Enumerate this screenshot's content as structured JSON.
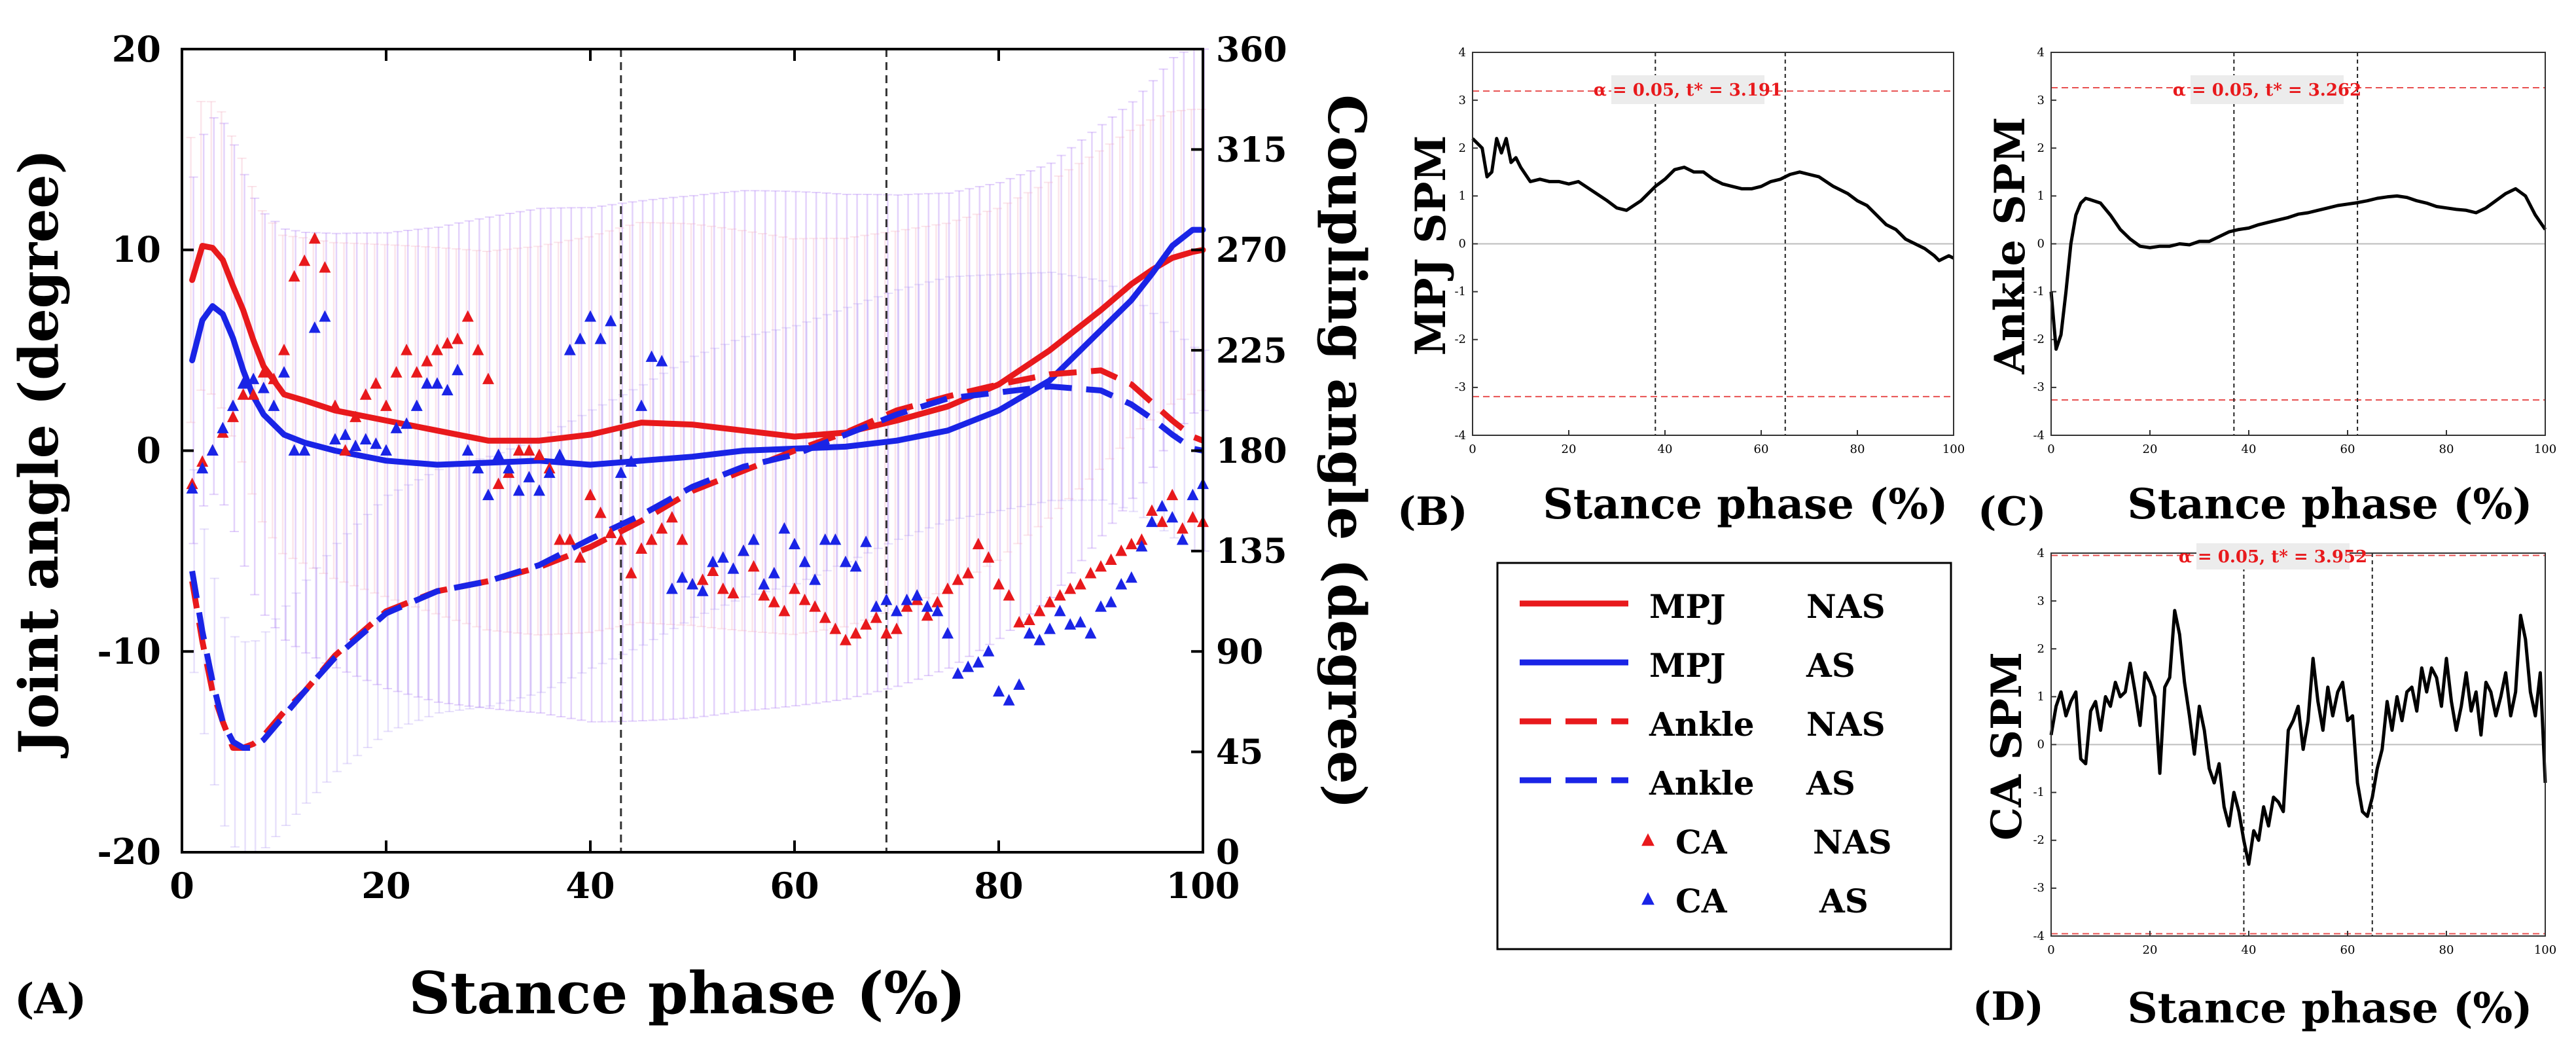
{
  "panel_labels": {
    "A": "(A)",
    "B": "(B)",
    "C": "(C)",
    "D": "(D)"
  },
  "legend": {
    "entries": [
      {
        "name": "MPJ",
        "group": "NAS",
        "color": "#e8191c",
        "style": "solid"
      },
      {
        "name": "MPJ",
        "group": "AS",
        "color": "#1a24e6",
        "style": "solid"
      },
      {
        "name": "Ankle",
        "group": "NAS",
        "color": "#e8191c",
        "style": "dashed"
      },
      {
        "name": "Ankle",
        "group": "AS",
        "color": "#1a24e6",
        "style": "dashed"
      },
      {
        "name": "CA",
        "group": "NAS",
        "color": "#e8191c",
        "style": "marker"
      },
      {
        "name": "CA",
        "group": "AS",
        "color": "#1a24e6",
        "style": "marker"
      }
    ]
  },
  "chart_data": [
    {
      "id": "A",
      "type": "line",
      "xlabel": "Stance phase (%)",
      "ylabel": "Joint angle (degree)",
      "y2label": "Coupling angle (degree)",
      "xlim": [
        0,
        100
      ],
      "ylim": [
        -20,
        20
      ],
      "y2lim": [
        0,
        360
      ],
      "xticks": [
        "0",
        "20",
        "40",
        "60",
        "80",
        "100"
      ],
      "yticks": [
        "-20",
        "-10",
        "0",
        "10",
        "20"
      ],
      "y2ticks": [
        "0",
        "45",
        "90",
        "135",
        "180",
        "225",
        "270",
        "315",
        "360"
      ],
      "vlines": [
        43,
        69
      ],
      "x": [
        1,
        2,
        3,
        4,
        5,
        6,
        7,
        8,
        10,
        12,
        15,
        20,
        25,
        30,
        35,
        40,
        45,
        50,
        55,
        60,
        65,
        70,
        75,
        80,
        85,
        90,
        93,
        95,
        97,
        99,
        100
      ],
      "series": [
        {
          "name": "MPJ NAS",
          "color": "#e8191c",
          "style": "solid",
          "axis": "left",
          "values": [
            8.5,
            10.2,
            10.1,
            9.5,
            8.2,
            7.0,
            5.5,
            4.2,
            2.8,
            2.5,
            2.0,
            1.5,
            1.0,
            0.5,
            0.5,
            0.8,
            1.4,
            1.3,
            1.0,
            0.7,
            0.9,
            1.5,
            2.2,
            3.3,
            5.0,
            7.0,
            8.3,
            9.0,
            9.6,
            9.9,
            10.0
          ]
        },
        {
          "name": "MPJ AS",
          "color": "#1a24e6",
          "style": "solid",
          "axis": "left",
          "values": [
            4.5,
            6.5,
            7.2,
            6.8,
            5.6,
            4.0,
            2.7,
            1.8,
            0.8,
            0.4,
            0.0,
            -0.5,
            -0.7,
            -0.6,
            -0.5,
            -0.7,
            -0.5,
            -0.3,
            0.0,
            0.1,
            0.2,
            0.5,
            1.0,
            2.0,
            3.5,
            6.0,
            7.5,
            8.8,
            10.2,
            11.0,
            11.0
          ]
        },
        {
          "name": "Ankle NAS",
          "color": "#e8191c",
          "style": "dashed",
          "axis": "left",
          "values": [
            -6.5,
            -9.5,
            -12.0,
            -13.5,
            -14.8,
            -14.8,
            -14.6,
            -14.2,
            -13.0,
            -12.0,
            -10.2,
            -8.0,
            -7.0,
            -6.5,
            -5.8,
            -4.8,
            -3.5,
            -2.0,
            -1.0,
            0.0,
            0.9,
            2.0,
            2.7,
            3.3,
            3.8,
            4.0,
            3.3,
            2.4,
            1.5,
            0.7,
            0.5
          ]
        },
        {
          "name": "Ankle AS",
          "color": "#1a24e6",
          "style": "dashed",
          "axis": "left",
          "values": [
            -6.0,
            -9.0,
            -11.5,
            -13.5,
            -14.5,
            -14.8,
            -14.8,
            -14.4,
            -13.2,
            -12.0,
            -10.3,
            -8.1,
            -7.0,
            -6.5,
            -5.7,
            -4.4,
            -3.2,
            -1.8,
            -0.8,
            -0.2,
            0.8,
            1.8,
            2.6,
            2.9,
            3.2,
            3.0,
            2.3,
            1.6,
            0.8,
            0.1,
            0.0
          ]
        }
      ],
      "ca_points": {
        "NAS": {
          "color": "#e8191c",
          "x": [
            1,
            2,
            3,
            4,
            5,
            6,
            7,
            8,
            9,
            10,
            11,
            12,
            13,
            14,
            15,
            16,
            17,
            18,
            19,
            20,
            21,
            22,
            23,
            24,
            25,
            26,
            27,
            28,
            29,
            30,
            31,
            32,
            33,
            34,
            35,
            36,
            37,
            38,
            39,
            40,
            41,
            42,
            43,
            44,
            45,
            46,
            47,
            48,
            49,
            50,
            51,
            52,
            53,
            54,
            55,
            56,
            57,
            58,
            59,
            60,
            61,
            62,
            63,
            64,
            65,
            66,
            67,
            68,
            69,
            70,
            71,
            72,
            73,
            74,
            75,
            76,
            77,
            78,
            79,
            80,
            81,
            82,
            83,
            84,
            85,
            86,
            87,
            88,
            89,
            90,
            91,
            92,
            93,
            94,
            95,
            96,
            97,
            98,
            99,
            100
          ],
          "y": [
            165,
            175,
            180,
            188,
            195,
            205,
            205,
            215,
            212,
            225,
            258,
            265,
            275,
            262,
            200,
            180,
            195,
            205,
            210,
            200,
            215,
            225,
            215,
            220,
            225,
            228,
            230,
            240,
            225,
            212,
            165,
            170,
            180,
            180,
            178,
            172,
            140,
            140,
            132,
            160,
            152,
            143,
            140,
            125,
            136,
            140,
            145,
            150,
            140,
            120,
            122,
            126,
            118,
            116,
            135,
            128,
            115,
            112,
            108,
            118,
            113,
            110,
            105,
            100,
            95,
            98,
            102,
            105,
            98,
            100,
            110,
            113,
            106,
            112,
            118,
            122,
            125,
            138,
            132,
            120,
            115,
            103,
            104,
            108,
            112,
            115,
            118,
            120,
            125,
            128,
            131,
            135,
            138,
            140,
            153,
            148,
            160,
            145,
            150,
            148
          ]
        },
        "AS": {
          "color": "#1a24e6",
          "x": [
            1,
            2,
            3,
            4,
            5,
            6,
            7,
            8,
            9,
            10,
            11,
            12,
            13,
            14,
            15,
            16,
            17,
            18,
            19,
            20,
            21,
            22,
            23,
            24,
            25,
            26,
            27,
            28,
            29,
            30,
            31,
            32,
            33,
            34,
            35,
            36,
            37,
            38,
            39,
            40,
            41,
            42,
            43,
            44,
            45,
            46,
            47,
            48,
            49,
            50,
            51,
            52,
            53,
            54,
            55,
            56,
            57,
            58,
            59,
            60,
            61,
            62,
            63,
            64,
            65,
            66,
            67,
            68,
            69,
            70,
            71,
            72,
            73,
            74,
            75,
            76,
            77,
            78,
            79,
            80,
            81,
            82,
            83,
            84,
            85,
            86,
            87,
            88,
            89,
            90,
            91,
            92,
            93,
            94,
            95,
            96,
            97,
            98,
            99,
            100
          ],
          "y": [
            163,
            172,
            180,
            190,
            200,
            210,
            212,
            208,
            200,
            215,
            180,
            180,
            235,
            240,
            185,
            187,
            182,
            185,
            183,
            180,
            190,
            192,
            200,
            210,
            210,
            207,
            216,
            180,
            172,
            160,
            178,
            172,
            162,
            168,
            162,
            170,
            178,
            225,
            230,
            240,
            230,
            238,
            170,
            175,
            200,
            222,
            220,
            118,
            123,
            120,
            117,
            130,
            132,
            127,
            135,
            140,
            120,
            125,
            145,
            138,
            130,
            122,
            140,
            140,
            130,
            128,
            139,
            110,
            113,
            108,
            113,
            115,
            110,
            108,
            98,
            80,
            83,
            85,
            90,
            72,
            68,
            75,
            98,
            95,
            100,
            108,
            102,
            103,
            98,
            110,
            112,
            120,
            123,
            137,
            148,
            155,
            150,
            140,
            160,
            165
          ]
        }
      }
    },
    {
      "id": "B",
      "type": "line",
      "xlabel": "Stance phase (%)",
      "ylabel": "MPJ SPM",
      "threshold_label": "α = 0.05, t* = 3.191",
      "threshold": 3.191,
      "xlim": [
        0,
        100
      ],
      "ylim": [
        -4,
        4
      ],
      "xticks": [
        "0",
        "20",
        "40",
        "60",
        "80",
        "100"
      ],
      "yticks": [
        "-4",
        "-3",
        "-2",
        "-1",
        "0",
        "1",
        "2",
        "3",
        "4"
      ],
      "vlines": [
        38,
        65
      ],
      "x": [
        0,
        1,
        2,
        3,
        4,
        5,
        6,
        7,
        8,
        9,
        10,
        12,
        14,
        16,
        18,
        20,
        22,
        25,
        28,
        30,
        32,
        35,
        38,
        40,
        42,
        44,
        46,
        48,
        50,
        52,
        54,
        56,
        58,
        60,
        62,
        64,
        66,
        68,
        70,
        72,
        75,
        78,
        80,
        82,
        84,
        86,
        88,
        90,
        92,
        94,
        96,
        97,
        98,
        99,
        100
      ],
      "values": [
        2.2,
        2.1,
        2.0,
        1.4,
        1.5,
        2.2,
        1.9,
        2.2,
        1.7,
        1.8,
        1.6,
        1.3,
        1.35,
        1.3,
        1.3,
        1.25,
        1.3,
        1.1,
        0.9,
        0.75,
        0.7,
        0.9,
        1.2,
        1.35,
        1.55,
        1.6,
        1.5,
        1.5,
        1.35,
        1.25,
        1.2,
        1.15,
        1.15,
        1.2,
        1.3,
        1.35,
        1.45,
        1.5,
        1.45,
        1.4,
        1.2,
        1.05,
        0.9,
        0.8,
        0.6,
        0.4,
        0.3,
        0.1,
        0.0,
        -0.1,
        -0.25,
        -0.35,
        -0.3,
        -0.25,
        -0.3
      ]
    },
    {
      "id": "C",
      "type": "line",
      "xlabel": "Stance phase (%)",
      "ylabel": "Ankle SPM",
      "threshold_label": "α = 0.05, t* = 3.262",
      "threshold": 3.262,
      "xlim": [
        0,
        100
      ],
      "ylim": [
        -4,
        4
      ],
      "xticks": [
        "0",
        "20",
        "40",
        "60",
        "80",
        "100"
      ],
      "yticks": [
        "-4",
        "-3",
        "-2",
        "-1",
        "0",
        "1",
        "2",
        "3",
        "4"
      ],
      "vlines": [
        37,
        62
      ],
      "x": [
        0,
        1,
        2,
        3,
        4,
        5,
        6,
        7,
        8,
        10,
        12,
        14,
        16,
        18,
        20,
        22,
        24,
        26,
        28,
        30,
        32,
        34,
        36,
        38,
        40,
        42,
        44,
        46,
        48,
        50,
        52,
        54,
        56,
        58,
        60,
        62,
        64,
        66,
        68,
        70,
        72,
        74,
        76,
        78,
        80,
        82,
        84,
        86,
        88,
        90,
        92,
        94,
        96,
        98,
        100
      ],
      "values": [
        -1.0,
        -2.2,
        -1.9,
        -1.0,
        0.0,
        0.6,
        0.85,
        0.95,
        0.92,
        0.85,
        0.6,
        0.3,
        0.1,
        -0.05,
        -0.08,
        -0.05,
        -0.05,
        0.0,
        -0.02,
        0.05,
        0.05,
        0.15,
        0.25,
        0.3,
        0.33,
        0.4,
        0.45,
        0.5,
        0.55,
        0.62,
        0.65,
        0.7,
        0.75,
        0.8,
        0.83,
        0.86,
        0.9,
        0.95,
        0.98,
        1.0,
        0.97,
        0.9,
        0.85,
        0.78,
        0.75,
        0.72,
        0.7,
        0.65,
        0.75,
        0.9,
        1.05,
        1.15,
        1.0,
        0.6,
        0.3
      ]
    },
    {
      "id": "D",
      "type": "line",
      "xlabel": "Stance phase (%)",
      "ylabel": "CA SPM",
      "threshold_label": "α = 0.05, t* = 3.952",
      "threshold": 3.952,
      "xlim": [
        0,
        100
      ],
      "ylim": [
        -4,
        4
      ],
      "xticks": [
        "0",
        "20",
        "40",
        "60",
        "80",
        "100"
      ],
      "yticks": [
        "-4",
        "-3",
        "-2",
        "-1",
        "0",
        "1",
        "2",
        "3",
        "4"
      ],
      "vlines": [
        39,
        65
      ],
      "x": [
        0,
        1,
        2,
        3,
        4,
        5,
        6,
        7,
        8,
        9,
        10,
        11,
        12,
        13,
        14,
        15,
        16,
        17,
        18,
        19,
        20,
        21,
        22,
        23,
        24,
        25,
        26,
        27,
        28,
        29,
        30,
        31,
        32,
        33,
        34,
        35,
        36,
        37,
        38,
        39,
        40,
        41,
        42,
        43,
        44,
        45,
        46,
        47,
        48,
        49,
        50,
        51,
        52,
        53,
        54,
        55,
        56,
        57,
        58,
        59,
        60,
        61,
        62,
        63,
        64,
        65,
        66,
        67,
        68,
        69,
        70,
        71,
        72,
        73,
        74,
        75,
        76,
        77,
        78,
        79,
        80,
        81,
        82,
        83,
        84,
        85,
        86,
        87,
        88,
        89,
        90,
        91,
        92,
        93,
        94,
        95,
        96,
        97,
        98,
        99,
        100
      ],
      "values": [
        0.2,
        0.8,
        1.1,
        0.6,
        0.9,
        1.1,
        -0.3,
        -0.4,
        0.7,
        0.9,
        0.3,
        1.0,
        0.8,
        1.3,
        1.0,
        1.1,
        1.7,
        1.1,
        0.4,
        1.5,
        1.3,
        1.0,
        -0.6,
        1.2,
        1.4,
        2.8,
        2.3,
        1.3,
        0.6,
        -0.2,
        0.8,
        0.3,
        -0.5,
        -0.8,
        -0.4,
        -1.3,
        -1.7,
        -1.0,
        -1.4,
        -2.0,
        -2.5,
        -1.8,
        -2.0,
        -1.3,
        -1.7,
        -1.1,
        -1.2,
        -1.4,
        0.3,
        0.5,
        0.8,
        -0.1,
        0.5,
        1.8,
        0.9,
        0.3,
        1.2,
        0.6,
        1.1,
        1.3,
        0.5,
        0.6,
        -0.8,
        -1.4,
        -1.5,
        -1.1,
        -0.5,
        -0.1,
        0.9,
        0.3,
        1.0,
        0.5,
        1.1,
        1.2,
        0.7,
        1.6,
        1.1,
        1.6,
        1.4,
        0.8,
        1.8,
        0.9,
        0.3,
        0.8,
        1.5,
        0.7,
        1.1,
        0.2,
        1.3,
        1.1,
        0.6,
        1.0,
        1.5,
        0.6,
        1.1,
        2.7,
        2.2,
        1.1,
        0.6,
        1.5,
        -0.8
      ]
    }
  ]
}
